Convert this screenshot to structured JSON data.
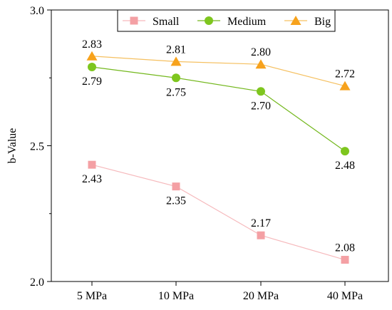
{
  "chart_data": {
    "type": "line",
    "categories": [
      "5 MPa",
      "10 MPa",
      "20 MPa",
      "40 MPa"
    ],
    "ylabel": "b-Value",
    "xlabel": "",
    "ylim": [
      2.0,
      3.0
    ],
    "yticks": [
      2.0,
      2.5,
      3.0
    ],
    "ytick_labels": [
      "2.0",
      "2.5",
      "3.0"
    ],
    "grid": false,
    "legend_position": "top-center",
    "series": [
      {
        "name": "Small",
        "marker": "square",
        "marker_color": "#f4a0a4",
        "line_color": "#f6b9bc",
        "values": [
          2.43,
          2.35,
          2.17,
          2.08
        ],
        "labels": [
          "2.43",
          "2.35",
          "2.17",
          "2.08"
        ],
        "label_placement": [
          "below",
          "below",
          "above",
          "above"
        ]
      },
      {
        "name": "Medium",
        "marker": "circle",
        "marker_color": "#7ec61e",
        "line_color": "#74b81e",
        "values": [
          2.79,
          2.75,
          2.7,
          2.48
        ],
        "labels": [
          "2.79",
          "2.75",
          "2.70",
          "2.48"
        ],
        "label_placement": [
          "below",
          "below",
          "below",
          "below"
        ]
      },
      {
        "name": "Big",
        "marker": "triangle",
        "marker_color": "#f7a21c",
        "line_color": "#f5c060",
        "values": [
          2.83,
          2.81,
          2.8,
          2.72
        ],
        "labels": [
          "2.83",
          "2.81",
          "2.80",
          "2.72"
        ],
        "label_placement": [
          "above",
          "above",
          "above",
          "above"
        ]
      }
    ]
  }
}
